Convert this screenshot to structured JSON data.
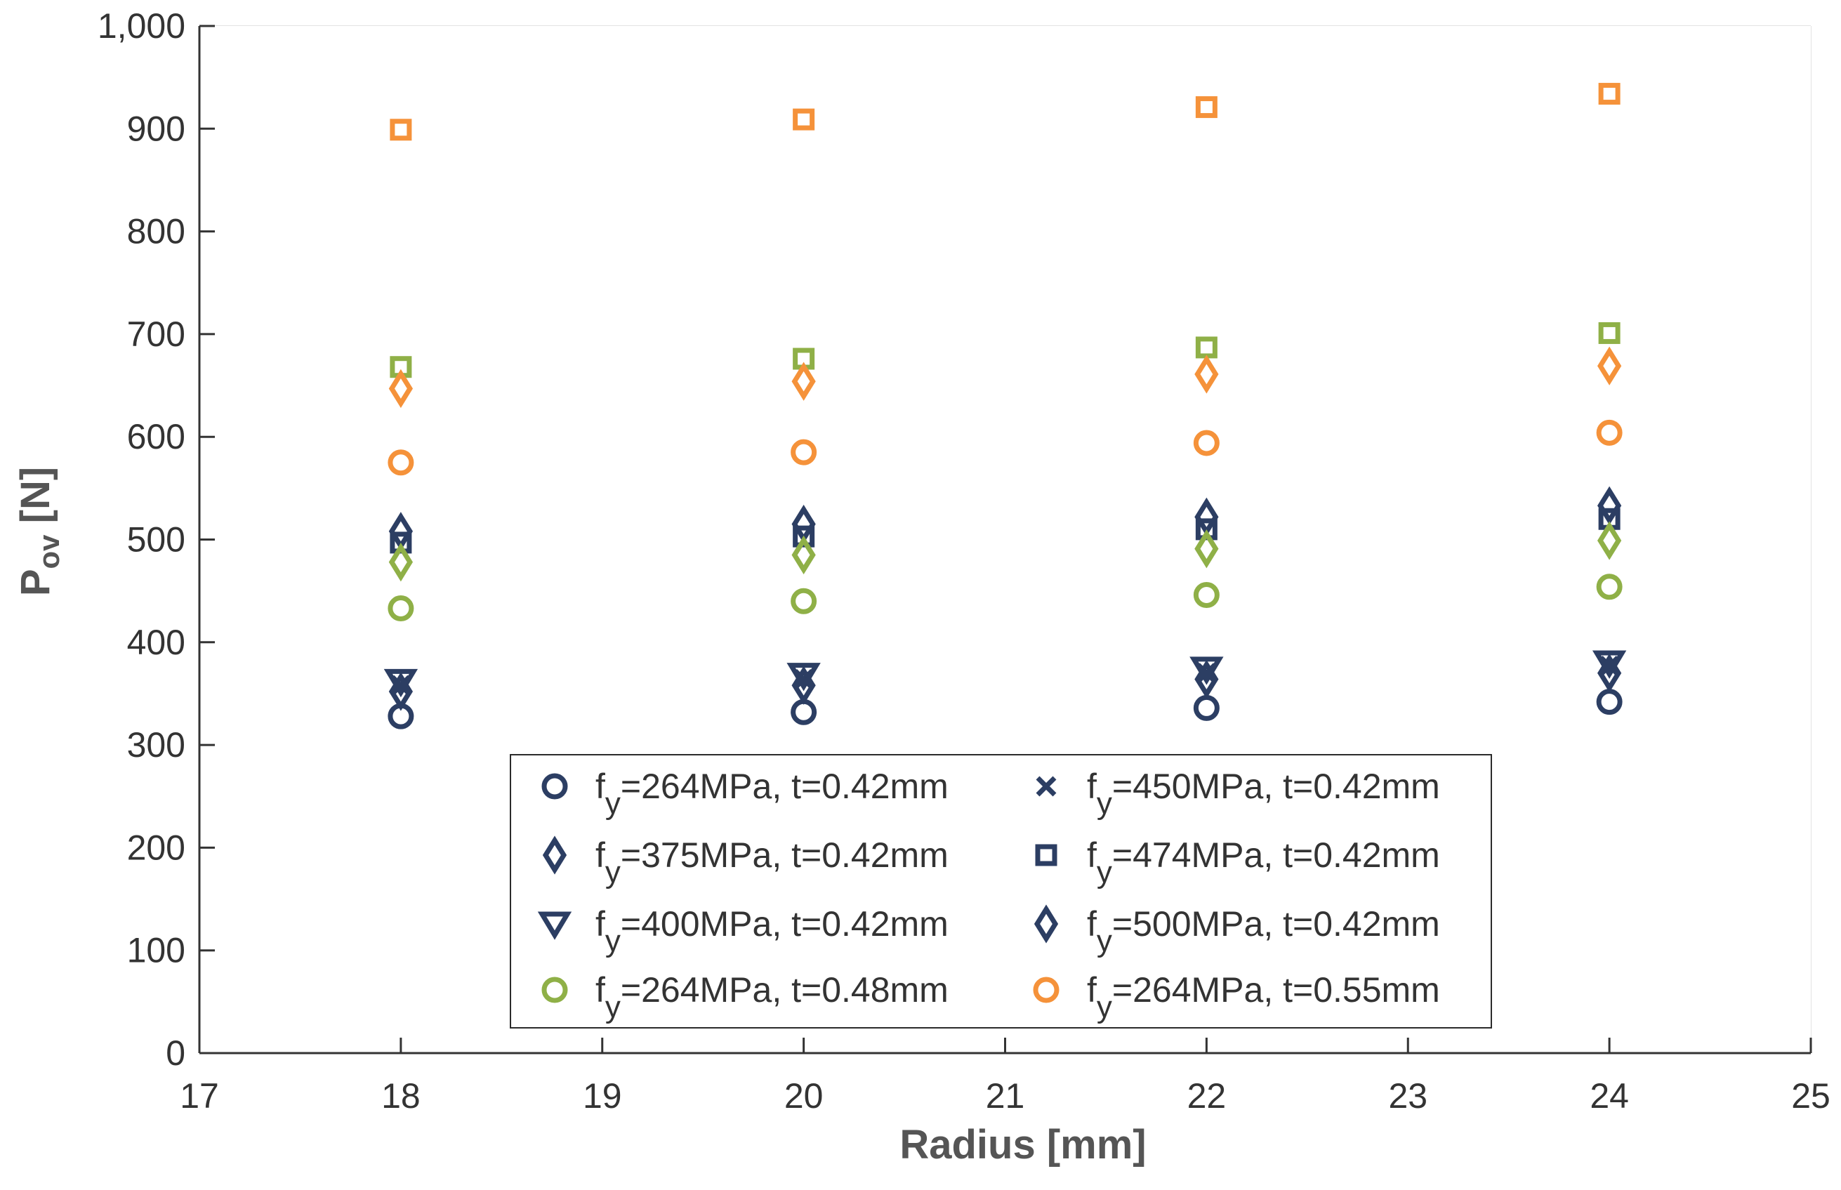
{
  "chart_data": {
    "type": "scatter",
    "xlabel": "Radius [mm]",
    "ylabel": {
      "main": "P",
      "sub": "ov",
      "unit": " [N]"
    },
    "xlim": [
      17,
      25
    ],
    "ylim": [
      0,
      1000
    ],
    "xticks": [
      17,
      18,
      19,
      20,
      21,
      22,
      23,
      24,
      25
    ],
    "yticks": [
      0,
      100,
      200,
      300,
      400,
      500,
      600,
      700,
      800,
      900,
      1000
    ],
    "yticklabels": [
      "0",
      "100",
      "200",
      "300",
      "400",
      "500",
      "600",
      "700",
      "800",
      "900",
      "1,000"
    ],
    "grid": true,
    "legend_position": "bottom-center",
    "legend_columns": 2,
    "colors": {
      "navy": "#2c3e63",
      "green": "#8fb047",
      "orange": "#f5923a"
    },
    "series": [
      {
        "legend": {
          "prefix": "f",
          "sub": "y",
          "rest": "=264MPa, t=0.42mm"
        },
        "marker": "circle",
        "color": "#2c3e63",
        "x": [
          18,
          20,
          22,
          24
        ],
        "y": [
          328,
          332,
          336,
          342
        ]
      },
      {
        "legend": {
          "prefix": "f",
          "sub": "y",
          "rest": "=450MPa, t=0.42mm"
        },
        "marker": "x",
        "color": "#2c3e63",
        "x": [
          18,
          20,
          22,
          24
        ],
        "y": [
          358,
          364,
          370,
          377
        ]
      },
      {
        "legend": {
          "prefix": "f",
          "sub": "y",
          "rest": "=375MPa, t=0.42mm"
        },
        "marker": "diamond",
        "color": "#2c3e63",
        "x": [
          18,
          20,
          22,
          24
        ],
        "y": [
          352,
          358,
          364,
          370
        ]
      },
      {
        "legend": {
          "prefix": "f",
          "sub": "y",
          "rest": "=474MPa, t=0.42mm"
        },
        "marker": "square",
        "color": "#2c3e63",
        "x": [
          18,
          20,
          22,
          24
        ],
        "y": [
          497,
          503,
          510,
          520
        ]
      },
      {
        "legend": {
          "prefix": "f",
          "sub": "y",
          "rest": "=400MPa, t=0.42mm"
        },
        "marker": "triangle-down",
        "color": "#2c3e63",
        "x": [
          18,
          20,
          22,
          24
        ],
        "y": [
          362,
          368,
          374,
          380
        ]
      },
      {
        "legend": {
          "prefix": "f",
          "sub": "y",
          "rest": "=500MPa, t=0.42mm"
        },
        "marker": "diamond",
        "color": "#2c3e63",
        "x": [
          18,
          20,
          22,
          24
        ],
        "y": [
          508,
          515,
          522,
          533
        ]
      },
      {
        "legend": {
          "prefix": "f",
          "sub": "y",
          "rest": "=264MPa, t=0.48mm"
        },
        "marker": "circle",
        "color": "#8fb047",
        "x": [
          18,
          20,
          22,
          24
        ],
        "y": [
          433,
          440,
          446,
          454
        ]
      },
      {
        "legend": {
          "prefix": "f",
          "sub": "y",
          "rest": "=264MPa, t=0.55mm"
        },
        "marker": "circle",
        "color": "#f5923a",
        "x": [
          18,
          20,
          22,
          24
        ],
        "y": [
          575,
          585,
          594,
          604
        ]
      },
      {
        "legend": null,
        "marker": "diamond",
        "color": "#8fb047",
        "x": [
          18,
          20,
          22,
          24
        ],
        "y": [
          478,
          485,
          491,
          499
        ]
      },
      {
        "legend": null,
        "marker": "square",
        "color": "#8fb047",
        "x": [
          18,
          20,
          22,
          24
        ],
        "y": [
          668,
          676,
          687,
          701
        ]
      },
      {
        "legend": null,
        "marker": "diamond",
        "color": "#f5923a",
        "x": [
          18,
          20,
          22,
          24
        ],
        "y": [
          647,
          654,
          661,
          669
        ]
      },
      {
        "legend": null,
        "marker": "square",
        "color": "#f5923a",
        "x": [
          18,
          20,
          22,
          24
        ],
        "y": [
          899,
          909,
          921,
          934
        ]
      }
    ]
  }
}
